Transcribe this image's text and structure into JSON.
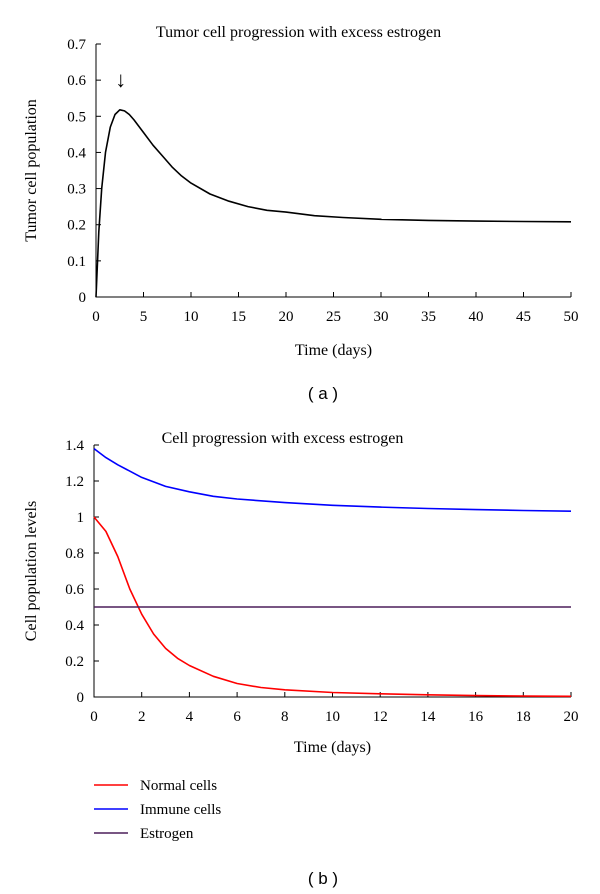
{
  "chart_data": [
    {
      "type": "line",
      "panel_label": "( a )",
      "title": "Tumor cell progression with excess estrogen",
      "xlabel": "Time (days)",
      "ylabel": "Tumor cell population",
      "xlim": [
        0,
        50
      ],
      "ylim": [
        0,
        0.7
      ],
      "xticks": [
        0,
        5,
        10,
        15,
        20,
        25,
        30,
        35,
        40,
        45,
        50
      ],
      "yticks": [
        0,
        0.1,
        0.2,
        0.3,
        0.4,
        0.5,
        0.6,
        0.7
      ],
      "annotation": {
        "text": "↓",
        "x": 2.6,
        "y": 0.62
      },
      "series": [
        {
          "color": "#000000",
          "x": [
            0,
            0.3,
            0.6,
            1,
            1.5,
            2,
            2.5,
            3,
            3.5,
            4,
            5,
            6,
            7,
            8,
            9,
            10,
            12,
            14,
            16,
            18,
            20,
            23,
            26,
            30,
            35,
            40,
            45,
            50
          ],
          "y": [
            0,
            0.18,
            0.3,
            0.4,
            0.47,
            0.505,
            0.518,
            0.515,
            0.505,
            0.49,
            0.455,
            0.42,
            0.39,
            0.36,
            0.335,
            0.315,
            0.285,
            0.265,
            0.25,
            0.24,
            0.235,
            0.225,
            0.22,
            0.215,
            0.212,
            0.21,
            0.209,
            0.208
          ]
        }
      ],
      "grid": false
    },
    {
      "type": "line",
      "panel_label": "( b )",
      "title": "Cell progression with excess estrogen",
      "xlabel": "Time (days)",
      "ylabel": "Cell population levels",
      "xlim": [
        0,
        20
      ],
      "ylim": [
        0,
        1.4
      ],
      "xticks": [
        0,
        2,
        4,
        6,
        8,
        10,
        12,
        14,
        16,
        18,
        20
      ],
      "yticks": [
        0,
        0.2,
        0.4,
        0.6,
        0.8,
        1,
        1.2,
        1.4
      ],
      "legend_position": "below-left",
      "series": [
        {
          "name": "Normal cells",
          "color": "#ff0000",
          "x": [
            0,
            0.5,
            1,
            1.5,
            2,
            2.5,
            3,
            3.5,
            4,
            5,
            6,
            7,
            8,
            10,
            12,
            14,
            16,
            18,
            20
          ],
          "y": [
            1.0,
            0.92,
            0.78,
            0.6,
            0.46,
            0.35,
            0.27,
            0.215,
            0.175,
            0.115,
            0.075,
            0.053,
            0.04,
            0.025,
            0.018,
            0.012,
            0.008,
            0.005,
            0.004
          ]
        },
        {
          "name": "Immune cells",
          "color": "#0000ff",
          "x": [
            0,
            0.5,
            1,
            2,
            3,
            4,
            5,
            6,
            8,
            10,
            12,
            14,
            16,
            18,
            20
          ],
          "y": [
            1.38,
            1.33,
            1.29,
            1.22,
            1.17,
            1.14,
            1.115,
            1.1,
            1.08,
            1.065,
            1.055,
            1.047,
            1.041,
            1.036,
            1.032
          ]
        },
        {
          "name": "Estrogen",
          "color": "#4b1e5a",
          "x": [
            0,
            20
          ],
          "y": [
            0.5,
            0.5
          ]
        }
      ],
      "grid": false
    }
  ]
}
